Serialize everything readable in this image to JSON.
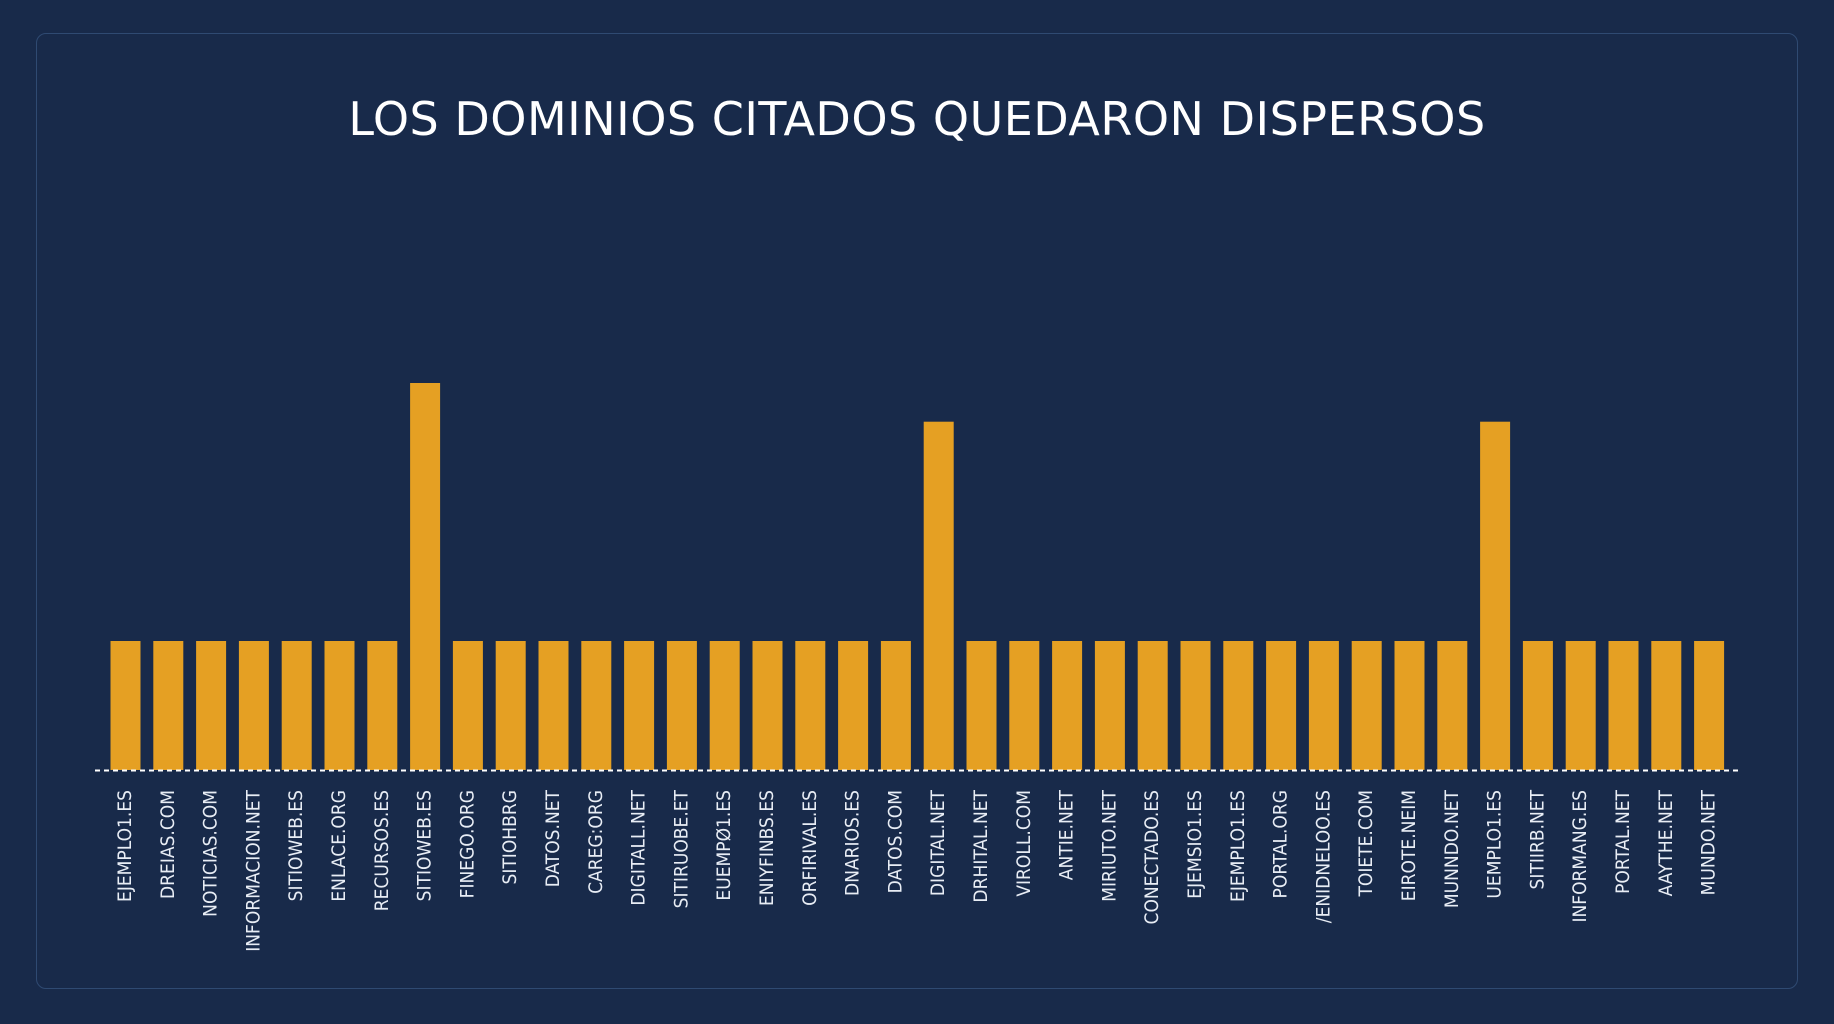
{
  "chart_data": {
    "type": "bar",
    "title": "LOS DOMINIOS CITADOS QUEDARON DISPERSOS",
    "xlabel": "",
    "ylabel": "",
    "grid": false,
    "legend": "none",
    "ylim": [
      0,
      3.2
    ],
    "categories": [
      "EJEMPLO1.ES",
      "DREIAS.COM",
      "NOTICIAS.COM",
      "INFORMACION.NET",
      "SITIOWEB.ES",
      "ENLACE.ORG",
      "RECURSOS.ES",
      "SITIOWEB.ES",
      "FINEGO.ORG",
      "SITIOHBRG",
      "DATOS.NET",
      "CAREG:ORG",
      "DIGITALL.NET",
      "SITIRUOBE.ET",
      "EUEMPØ1.ES",
      "ENIYFINBS.ES",
      "ORFIRIVAL.ES",
      "DNARIOS.ES",
      "DATOS.COM",
      "DIGITAL.NET",
      "DRHITAL.NET",
      "VIROLL.COM",
      "ANTIE.NET",
      "MIRIUTO.NET",
      "CONECTADO.ES",
      "EJEMSIO1.ES",
      "EJEMPLO1.ES",
      "PORTAL.ORG",
      "/ENIDNELOO.ES",
      "TOIETE.COM",
      "EIROTE.NEIM",
      "MUNNDO.NET",
      "UEMPLO1.ES",
      "SITIIRB.NET",
      "INFORMANG.ES",
      "PORTAL.NET",
      "AAYTHE.NET",
      "MUNDO.NET"
    ],
    "values": [
      1,
      1,
      1,
      1,
      1,
      1,
      1,
      3,
      1,
      1,
      1,
      1,
      1,
      1,
      1,
      1,
      1,
      1,
      1,
      2.7,
      1,
      1,
      1,
      1,
      1,
      1,
      1,
      1,
      1,
      1,
      1,
      1,
      2.7,
      1,
      1,
      1,
      1,
      1
    ],
    "bar_color": "#e5a023",
    "baseline_color": "#ffffff"
  }
}
